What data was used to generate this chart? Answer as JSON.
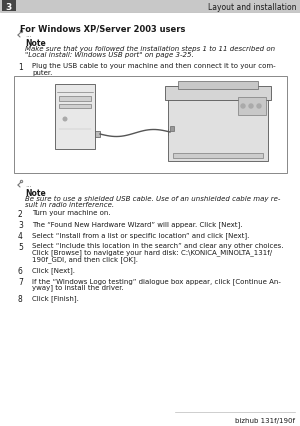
{
  "page_bg": "#ffffff",
  "header_bg": "#c8c8c8",
  "header_num": "3",
  "header_title": "Layout and installation",
  "section_title": "For Windows XP/Server 2003 users",
  "note1_label": "Note",
  "note1_line1": "Make sure that you followed the installation steps 1 to 11 described on",
  "note1_line2": "\"Local install: Windows USB port\" on page 3-25.",
  "step1_num": "1",
  "step1_line1": "Plug the USB cable to your machine and then connect it to your com-",
  "step1_line2": "puter.",
  "note2_label": "Note",
  "note2_line1": "Be sure to use a shielded USB cable. Use of an unshielded cable may re-",
  "note2_line2": "sult in radio interference.",
  "steps": [
    {
      "num": "2",
      "lines": [
        "Turn your machine on."
      ]
    },
    {
      "num": "3",
      "lines": [
        "The “Found New Hardware Wizard” will appear. Click [Next]."
      ]
    },
    {
      "num": "4",
      "lines": [
        "Select “Install from a list or specific location” and click [Next]."
      ]
    },
    {
      "num": "5",
      "lines": [
        "Select “Include this location in the search” and clear any other choices.",
        "Click [Browse] to navigate your hard disk: C:\\KONICA_MINOLTA_131f/",
        "190f_GDI, and then click [OK]."
      ]
    },
    {
      "num": "6",
      "lines": [
        "Click [Next]."
      ]
    },
    {
      "num": "7",
      "lines": [
        "If the “Windows Logo testing” dialogue box appear, click [Continue An-",
        "yway] to install the driver."
      ]
    },
    {
      "num": "8",
      "lines": [
        "Click [Finish]."
      ]
    }
  ],
  "footer_text": "bizhub 131f/190f",
  "text_color": "#1a1a1a",
  "light_gray": "#888888",
  "border_color": "#aaaaaa",
  "header_line_color": "#999999"
}
